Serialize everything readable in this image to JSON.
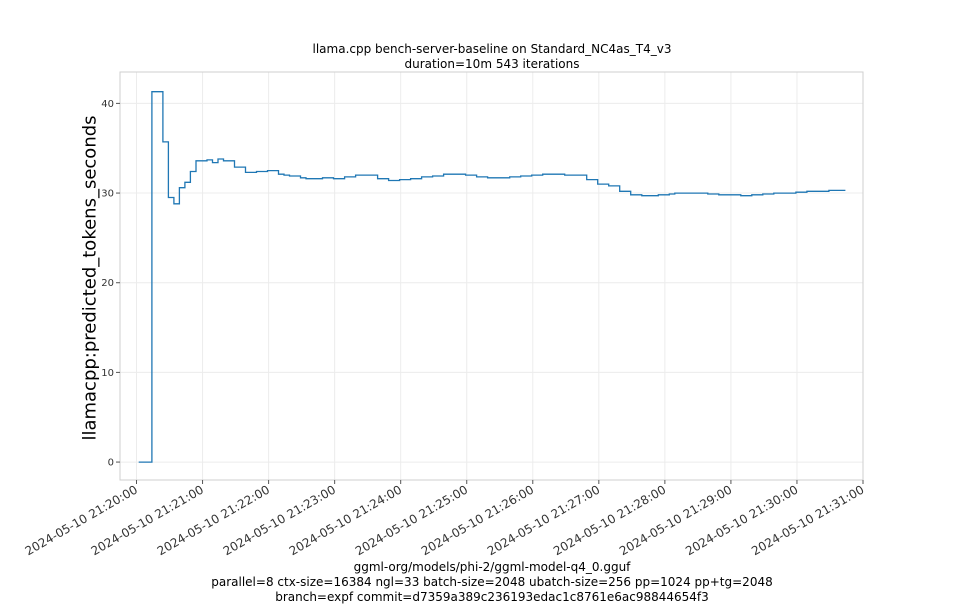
{
  "chart_data": {
    "type": "line",
    "title": "llama.cpp bench-server-baseline on Standard_NC4as_T4_v3",
    "subtitle": "duration=10m 543 iterations",
    "xlabel": "",
    "ylabel": "llamacpp:predicted_tokens_seconds",
    "footer": [
      "ggml-org/models/phi-2/ggml-model-q4_0.gguf",
      "parallel=8 ctx-size=16384 ngl=33 batch-size=2048 ubatch-size=256 pp=1024 pp+tg=2048",
      "branch=expf commit=d7359a389c236193edac1c8761e6ac98844654f3"
    ],
    "x_ticks": [
      "2024-05-10 21:20:00",
      "2024-05-10 21:21:00",
      "2024-05-10 21:22:00",
      "2024-05-10 21:23:00",
      "2024-05-10 21:24:00",
      "2024-05-10 21:25:00",
      "2024-05-10 21:26:00",
      "2024-05-10 21:27:00",
      "2024-05-10 21:28:00",
      "2024-05-10 21:29:00",
      "2024-05-10 21:30:00",
      "2024-05-10 21:31:00"
    ],
    "y_ticks": [
      0,
      10,
      20,
      30,
      40
    ],
    "xlim": [
      "2024-05-10 21:19:45",
      "2024-05-10 21:31:00"
    ],
    "ylim": [
      -2,
      43.5
    ],
    "grid": true,
    "legend": "none",
    "color": "#1f77b4",
    "series": [
      {
        "x": [
          "2024-05-10 21:20:02",
          "2024-05-10 21:20:12",
          "2024-05-10 21:20:14",
          "2024-05-10 21:20:19",
          "2024-05-10 21:20:24",
          "2024-05-10 21:20:29",
          "2024-05-10 21:20:34",
          "2024-05-10 21:20:39",
          "2024-05-10 21:20:44",
          "2024-05-10 21:20:49",
          "2024-05-10 21:20:54",
          "2024-05-10 21:20:59",
          "2024-05-10 21:21:04",
          "2024-05-10 21:21:09",
          "2024-05-10 21:21:14",
          "2024-05-10 21:21:19",
          "2024-05-10 21:21:29",
          "2024-05-10 21:21:39",
          "2024-05-10 21:21:49",
          "2024-05-10 21:21:59",
          "2024-05-10 21:22:04",
          "2024-05-10 21:22:09",
          "2024-05-10 21:22:14",
          "2024-05-10 21:22:19",
          "2024-05-10 21:22:29",
          "2024-05-10 21:22:34",
          "2024-05-10 21:22:39",
          "2024-05-10 21:22:49",
          "2024-05-10 21:22:59",
          "2024-05-10 21:23:09",
          "2024-05-10 21:23:19",
          "2024-05-10 21:23:29",
          "2024-05-10 21:23:39",
          "2024-05-10 21:23:49",
          "2024-05-10 21:23:59",
          "2024-05-10 21:24:09",
          "2024-05-10 21:24:19",
          "2024-05-10 21:24:29",
          "2024-05-10 21:24:39",
          "2024-05-10 21:24:49",
          "2024-05-10 21:24:59",
          "2024-05-10 21:25:09",
          "2024-05-10 21:25:19",
          "2024-05-10 21:25:29",
          "2024-05-10 21:25:39",
          "2024-05-10 21:25:49",
          "2024-05-10 21:25:59",
          "2024-05-10 21:26:09",
          "2024-05-10 21:26:19",
          "2024-05-10 21:26:29",
          "2024-05-10 21:26:39",
          "2024-05-10 21:26:49",
          "2024-05-10 21:26:59",
          "2024-05-10 21:27:09",
          "2024-05-10 21:27:19",
          "2024-05-10 21:27:29",
          "2024-05-10 21:27:39",
          "2024-05-10 21:27:49",
          "2024-05-10 21:27:54",
          "2024-05-10 21:27:59",
          "2024-05-10 21:28:04",
          "2024-05-10 21:28:09",
          "2024-05-10 21:28:19",
          "2024-05-10 21:28:29",
          "2024-05-10 21:28:39",
          "2024-05-10 21:28:49",
          "2024-05-10 21:28:59",
          "2024-05-10 21:29:09",
          "2024-05-10 21:29:19",
          "2024-05-10 21:29:29",
          "2024-05-10 21:29:39",
          "2024-05-10 21:29:49",
          "2024-05-10 21:29:59",
          "2024-05-10 21:30:09",
          "2024-05-10 21:30:19",
          "2024-05-10 21:30:29",
          "2024-05-10 21:30:39",
          "2024-05-10 21:30:44"
        ],
        "y": [
          0.0,
          0.0,
          41.3,
          41.3,
          35.7,
          29.5,
          28.8,
          30.6,
          31.2,
          32.4,
          33.6,
          33.6,
          33.7,
          33.4,
          33.8,
          33.6,
          32.9,
          32.3,
          32.4,
          32.5,
          32.5,
          32.1,
          32.0,
          31.9,
          31.7,
          31.6,
          31.6,
          31.7,
          31.6,
          31.8,
          32.0,
          32.0,
          31.6,
          31.4,
          31.5,
          31.6,
          31.8,
          31.9,
          32.1,
          32.1,
          32.0,
          31.8,
          31.7,
          31.7,
          31.8,
          31.9,
          32.0,
          32.1,
          32.1,
          32.0,
          32.0,
          31.5,
          31.0,
          30.8,
          30.2,
          29.8,
          29.7,
          29.7,
          29.8,
          29.8,
          29.9,
          30.0,
          30.0,
          30.0,
          29.9,
          29.8,
          29.8,
          29.7,
          29.8,
          29.9,
          30.0,
          30.0,
          30.1,
          30.2,
          30.2,
          30.3,
          30.3,
          30.3
        ]
      }
    ]
  }
}
